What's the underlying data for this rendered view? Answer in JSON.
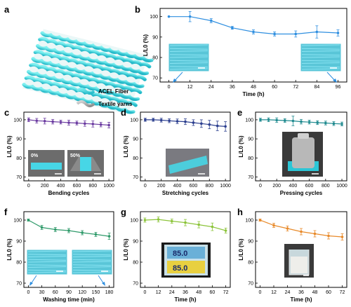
{
  "chart_data": [
    {
      "panel": "a",
      "type": "diagram",
      "legend": [
        "ACEL Fiber",
        "Textile yarns"
      ],
      "colors": {
        "fiber": "#3fd6d6",
        "yarn": "#9a9a9a"
      }
    },
    {
      "panel": "b",
      "type": "line",
      "xlabel": "Time (h)",
      "ylabel": "L/L0 (%)",
      "x": [
        0,
        12,
        24,
        36,
        48,
        60,
        72,
        84,
        96
      ],
      "values": [
        100,
        100,
        98,
        94.5,
        92.5,
        91.5,
        91.5,
        92.5,
        92
      ],
      "errors": [
        0,
        2.5,
        1,
        0.7,
        1,
        1,
        1.5,
        3,
        1.5
      ],
      "xticks": [
        0,
        12,
        24,
        36,
        48,
        60,
        72,
        84,
        96
      ],
      "yticks": [
        70,
        80,
        90,
        100
      ],
      "ylim": [
        68,
        104
      ],
      "xlim": [
        -5,
        101
      ],
      "color": "#2f8fe0"
    },
    {
      "panel": "c",
      "type": "line",
      "xlabel": "Bending cycles",
      "ylabel": "L/L0 (%)",
      "x": [
        0,
        100,
        200,
        300,
        400,
        500,
        600,
        700,
        800,
        900,
        1000
      ],
      "values": [
        100,
        99.5,
        99.3,
        99,
        98.8,
        98.5,
        98.3,
        98,
        97.8,
        97.5,
        97.2
      ],
      "errors": [
        1,
        1.2,
        1.5,
        1.2,
        1,
        1.3,
        1,
        1.4,
        1.6,
        1.2,
        1.5
      ],
      "xticks": [
        0,
        200,
        400,
        600,
        800,
        1000
      ],
      "yticks": [
        70,
        80,
        90,
        100
      ],
      "ylim": [
        68,
        104
      ],
      "xlim": [
        -60,
        1060
      ],
      "color": "#6a3aa0",
      "inset_labels": [
        "0%",
        "50%"
      ]
    },
    {
      "panel": "d",
      "type": "line",
      "xlabel": "Stretching cycles",
      "ylabel": "L/L0 (%)",
      "x": [
        0,
        100,
        200,
        300,
        400,
        500,
        600,
        700,
        800,
        900,
        1000
      ],
      "values": [
        100,
        100,
        99.8,
        99.5,
        99.2,
        99,
        98.5,
        98,
        97.5,
        96.8,
        96.5
      ],
      "errors": [
        0.8,
        0.8,
        1,
        1,
        1.2,
        1.5,
        1.5,
        2,
        2.2,
        2.5,
        2.5
      ],
      "xticks": [
        0,
        200,
        400,
        600,
        800,
        1000
      ],
      "yticks": [
        70,
        80,
        90,
        100
      ],
      "ylim": [
        68,
        104
      ],
      "xlim": [
        -60,
        1060
      ],
      "color": "#2c3f8f"
    },
    {
      "panel": "e",
      "type": "line",
      "xlabel": "Pressing cycles",
      "ylabel": "L/L0 (%)",
      "x": [
        0,
        100,
        200,
        300,
        400,
        500,
        600,
        700,
        800,
        900,
        1000
      ],
      "values": [
        100,
        100,
        99.8,
        99.6,
        99.4,
        99,
        98.8,
        98.5,
        98.3,
        98,
        97.8
      ],
      "errors": [
        0.8,
        1,
        1.2,
        1,
        2.5,
        1.2,
        1,
        1,
        1,
        1,
        1
      ],
      "xticks": [
        0,
        200,
        400,
        600,
        800,
        1000
      ],
      "yticks": [
        70,
        80,
        90,
        100
      ],
      "ylim": [
        68,
        104
      ],
      "xlim": [
        -60,
        1060
      ],
      "color": "#1f8a8f"
    },
    {
      "panel": "f",
      "type": "line",
      "xlabel": "Washing time (min)",
      "ylabel": "L/L0 (%)",
      "x": [
        0,
        30,
        60,
        90,
        120,
        150,
        180
      ],
      "values": [
        100,
        96.5,
        95.5,
        95,
        94,
        93.2,
        92.3
      ],
      "errors": [
        0.5,
        1,
        1,
        1,
        1,
        1,
        1.5
      ],
      "xticks": [
        0,
        30,
        60,
        90,
        120,
        150,
        180
      ],
      "yticks": [
        70,
        80,
        90,
        100
      ],
      "ylim": [
        68,
        104
      ],
      "xlim": [
        -10,
        190
      ],
      "color": "#2f9a6a"
    },
    {
      "panel": "g",
      "type": "line",
      "xlabel": "Time (h)",
      "ylabel": "L/L0 (%)",
      "x": [
        0,
        12,
        24,
        36,
        48,
        60,
        72
      ],
      "values": [
        100,
        100.3,
        99.5,
        98.8,
        97.8,
        96.8,
        95
      ],
      "errors": [
        1,
        1.2,
        1,
        1.5,
        1.5,
        1.8,
        1.2
      ],
      "xticks": [
        0,
        12,
        24,
        36,
        48,
        60,
        72
      ],
      "yticks": [
        70,
        80,
        90,
        100
      ],
      "ylim": [
        68,
        104
      ],
      "xlim": [
        -4,
        76
      ],
      "color": "#8cc43a",
      "inset_readout": [
        "85.0",
        "85.0"
      ]
    },
    {
      "panel": "h",
      "type": "line",
      "xlabel": "Time (h)",
      "ylabel": "L/L0 (%)",
      "x": [
        0,
        12,
        24,
        36,
        48,
        60,
        72
      ],
      "values": [
        100,
        97.5,
        96,
        94.5,
        93.5,
        92.5,
        92
      ],
      "errors": [
        0.5,
        1,
        1.2,
        1.5,
        1.5,
        1.5,
        1.5
      ],
      "xticks": [
        0,
        12,
        24,
        36,
        48,
        60,
        72
      ],
      "yticks": [
        70,
        80,
        90,
        100
      ],
      "ylim": [
        68,
        104
      ],
      "xlim": [
        -4,
        76
      ],
      "color": "#e88a2a"
    }
  ]
}
